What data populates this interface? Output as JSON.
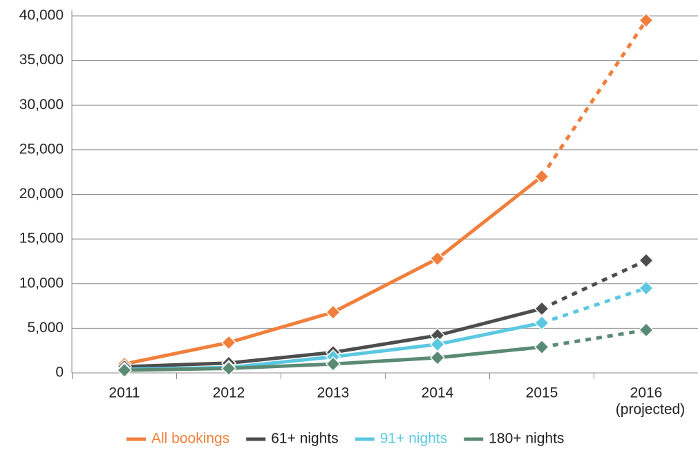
{
  "chart_data": {
    "type": "line",
    "categories": [
      "2011",
      "2012",
      "2013",
      "2014",
      "2015",
      "2016"
    ],
    "annotation": "(projected)",
    "projected": [
      false,
      false,
      false,
      false,
      false,
      true
    ],
    "series": [
      {
        "name": "All bookings",
        "color": "#f07f3c",
        "values": [
          1000,
          3400,
          6800,
          12800,
          22000,
          39500
        ]
      },
      {
        "name": "61+ nights",
        "color": "#4d4d4d",
        "values": [
          700,
          1100,
          2300,
          4200,
          7200,
          12600
        ]
      },
      {
        "name": "91+ nights",
        "color": "#5bc8e0",
        "values": [
          400,
          600,
          1800,
          3200,
          5600,
          9500
        ]
      },
      {
        "name": "180+ nights",
        "color": "#5a8a73",
        "values": [
          300,
          500,
          1000,
          1700,
          2900,
          4800
        ]
      }
    ],
    "ylim": [
      0,
      40000
    ],
    "yticks": [
      0,
      {
        "value": 5000,
        "label": "5,000"
      },
      {
        "value": 10000,
        "label": "10,000"
      },
      {
        "value": 15000,
        "label": "15,000"
      },
      {
        "value": 20000,
        "label": "20,000"
      },
      {
        "value": 25000,
        "label": "25,000"
      },
      {
        "value": 30000,
        "label": "30,000"
      },
      {
        "value": 35000,
        "label": "35,000"
      },
      {
        "value": 40000,
        "label": "40,000"
      }
    ],
    "grid": true,
    "legend": "bottom"
  }
}
